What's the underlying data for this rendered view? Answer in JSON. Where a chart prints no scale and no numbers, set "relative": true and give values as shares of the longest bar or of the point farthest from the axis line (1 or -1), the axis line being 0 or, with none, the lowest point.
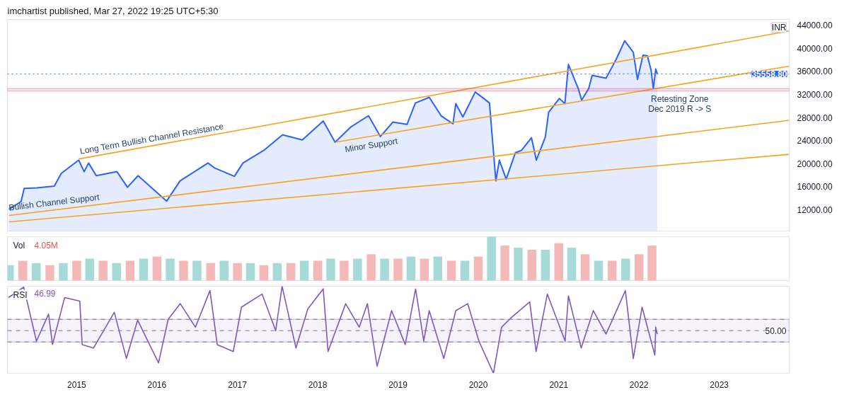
{
  "chart_data": [
    {
      "type": "area",
      "title": "imchartist published, Mar 27, 2022 19:25 UTC+5:30",
      "xlim": [
        "2014-02-20",
        "2023-11-15"
      ],
      "ylim": [
        8300,
        45000
      ],
      "yticks": [
        {
          "value": 12000,
          "label": "12000.00"
        },
        {
          "value": 16000,
          "label": "16000.00"
        },
        {
          "value": 20000,
          "label": "20000.00"
        },
        {
          "value": 24000,
          "label": "24000.00"
        },
        {
          "value": 28000,
          "label": "28000.00"
        },
        {
          "value": 32000,
          "label": "32000.00"
        },
        {
          "value": 36000,
          "label": "36000.00"
        },
        {
          "value": 40000,
          "label": "40000.00"
        },
        {
          "value": 44000,
          "label": "44000.00"
        }
      ],
      "tick_labels": "y",
      "series": [
        {
          "type": "area",
          "color": "#2962ff",
          "x": [
            "2014-02-27",
            "2014-04-23",
            "2014-05-07",
            "2014-07-03",
            "2014-09-21",
            "2014-10-23",
            "2015-01-10",
            "2015-02-04",
            "2015-02-24",
            "2015-03-31",
            "2015-07-03",
            "2015-08-20",
            "2015-10-07",
            "2016-02-14",
            "2016-04-15",
            "2016-08-20",
            "2016-09-21",
            "2016-12-18",
            "2017-01-26",
            "2017-05-01",
            "2017-07-25",
            "2017-10-23",
            "2018-01-26",
            "2018-03-21",
            "2018-06-02",
            "2018-08-20",
            "2018-10-13",
            "2018-12-09",
            "2019-02-11",
            "2019-03-21",
            "2019-05-23",
            "2019-07-16",
            "2019-09-08",
            "2019-09-21",
            "2019-10-23",
            "2019-12-18",
            "2020-01-26",
            "2020-02-21",
            "2020-03-21",
            "2020-04-06",
            "2020-05-07",
            "2020-06-18",
            "2020-07-16",
            "2020-08-30",
            "2020-09-21",
            "2020-11-01",
            "2020-11-16",
            "2021-01-04",
            "2021-01-29",
            "2021-02-14",
            "2021-03-31",
            "2021-04-15",
            "2021-05-17",
            "2021-06-02",
            "2021-08-04",
            "2021-09-18",
            "2021-10-28",
            "2021-12-06",
            "2021-12-25",
            "2022-01-19",
            "2022-02-08",
            "2022-02-25",
            "2022-03-07",
            "2022-03-18",
            "2022-03-25"
          ],
          "values": [
            12100,
            13400,
            15700,
            15800,
            16100,
            18300,
            20600,
            18600,
            20100,
            17900,
            18600,
            15900,
            17900,
            13500,
            17000,
            20100,
            19200,
            17800,
            20100,
            22300,
            25000,
            24100,
            27400,
            23700,
            26400,
            28300,
            24700,
            27200,
            26800,
            30500,
            31500,
            28300,
            26900,
            30400,
            28100,
            32400,
            31300,
            30500,
            17000,
            20600,
            17300,
            21900,
            22300,
            24500,
            20600,
            24600,
            28900,
            31300,
            30400,
            37200,
            33000,
            31000,
            33000,
            35300,
            34800,
            38000,
            41300,
            39300,
            34600,
            38800,
            38700,
            36200,
            33000,
            36400,
            35558.8
          ]
        },
        {
          "type": "line",
          "color": "#f7a21b",
          "x": [
            "2015-01-10",
            "2023-11-15"
          ],
          "values": [
            20800,
            43000
          ]
        },
        {
          "type": "line",
          "color": "#f7a21b",
          "x": [
            "2018-03-21",
            "2023-11-15"
          ],
          "values": [
            23700,
            36900
          ]
        },
        {
          "type": "line",
          "color": "#f7a21b",
          "x": [
            "2014-02-27",
            "2023-11-15"
          ],
          "values": [
            11000,
            27500
          ]
        },
        {
          "type": "line",
          "color": "#f7a21b",
          "x": [
            "2014-02-27",
            "2023-11-15"
          ],
          "values": [
            9900,
            21600
          ]
        }
      ],
      "ref_lines": [
        {
          "axis": "y",
          "value": 35558.8,
          "label": "35558.80",
          "color": "#2962ff",
          "line_style": "dotted"
        }
      ],
      "bands": [
        {
          "axis": "y",
          "from": 32600,
          "to": 33000,
          "color": "#e91e63"
        }
      ],
      "annotations": [
        "INR",
        {
          "text": "Long Term Bullish Channel Resistance",
          "x": "2015-01-20",
          "y": 21300
        },
        {
          "text": "Minor Support",
          "x": "2018-05-01",
          "y": 23300
        },
        {
          "text": "Bullish Channel Support",
          "x": "2014-03-01",
          "y": 11500
        },
        "Retesting Zone",
        "Dec 2019 R -> S"
      ]
    },
    {
      "type": "bar",
      "title": "Vol",
      "relative": true,
      "tick_labels": false,
      "xlim": [
        "2014-02-20",
        "2023-11-15"
      ],
      "x": [
        "2014-03",
        "2014-05",
        "2014-07",
        "2014-09",
        "2014-11",
        "2015-01",
        "2015-03",
        "2015-05",
        "2015-07",
        "2015-09",
        "2015-11",
        "2016-01",
        "2016-03",
        "2016-05",
        "2016-07",
        "2016-09",
        "2016-11",
        "2017-01",
        "2017-03",
        "2017-05",
        "2017-07",
        "2017-09",
        "2017-11",
        "2018-01",
        "2018-03",
        "2018-05",
        "2018-07",
        "2018-09",
        "2018-11",
        "2019-01",
        "2019-03",
        "2019-05",
        "2019-07",
        "2019-09",
        "2019-11",
        "2020-01",
        "2020-03",
        "2020-05",
        "2020-07",
        "2020-09",
        "2020-11",
        "2021-01",
        "2021-03",
        "2021-05",
        "2021-07",
        "2021-09",
        "2021-11",
        "2022-01",
        "2022-03"
      ],
      "series": [
        {
          "values": [
            0.35,
            0.45,
            0.4,
            0.35,
            0.4,
            0.45,
            0.5,
            0.45,
            0.4,
            0.45,
            0.5,
            0.55,
            0.5,
            0.45,
            0.45,
            0.4,
            0.45,
            0.4,
            0.4,
            0.35,
            0.4,
            0.4,
            0.45,
            0.45,
            0.5,
            0.45,
            0.5,
            0.6,
            0.5,
            0.5,
            0.55,
            0.5,
            0.55,
            0.45,
            0.45,
            0.55,
            1.0,
            0.8,
            0.75,
            0.7,
            0.7,
            0.85,
            0.75,
            0.6,
            0.45,
            0.45,
            0.5,
            0.6,
            0.8
          ],
          "colors": [
            "#80cbc4",
            "#ef9a9a",
            "#80cbc4",
            "#ef9a9a",
            "#80cbc4",
            "#ef9a9a",
            "#80cbc4",
            "#ef9a9a",
            "#80cbc4",
            "#ef9a9a",
            "#80cbc4",
            "#ef9a9a",
            "#80cbc4",
            "#ef9a9a",
            "#80cbc4",
            "#ef9a9a",
            "#80cbc4",
            "#ef9a9a",
            "#80cbc4",
            "#ef9a9a",
            "#80cbc4",
            "#ef9a9a",
            "#80cbc4",
            "#ef9a9a",
            "#80cbc4",
            "#ef9a9a",
            "#80cbc4",
            "#ef9a9a",
            "#80cbc4",
            "#ef9a9a",
            "#80cbc4",
            "#ef9a9a",
            "#80cbc4",
            "#ef9a9a",
            "#80cbc4",
            "#ef9a9a",
            "#80cbc4",
            "#ef9a9a",
            "#80cbc4",
            "#ef9a9a",
            "#80cbc4",
            "#ef9a9a",
            "#80cbc4",
            "#ef9a9a",
            "#80cbc4",
            "#ef9a9a",
            "#80cbc4",
            "#ef9a9a",
            "#ef9a9a"
          ]
        }
      ],
      "annotations": [
        "4.05M"
      ]
    },
    {
      "type": "line",
      "title": "RSI",
      "relative": true,
      "tick_labels": "x",
      "xlim": [
        "2014-02-20",
        "2023-11-15"
      ],
      "xticks": [
        "2015",
        "2016",
        "2017",
        "2018",
        "2019",
        "2020",
        "2021",
        "2022",
        "2023"
      ],
      "series": [
        {
          "color": "#7e57c2",
          "x": [
            "2014-02-25",
            "2014-05-05",
            "2014-07-02",
            "2014-08-26",
            "2014-09-13",
            "2014-11-07",
            "2015-01-15",
            "2015-01-26",
            "2015-03-18",
            "2015-06-21",
            "2015-08-15",
            "2015-10-05",
            "2016-01-08",
            "2016-02-21",
            "2016-04-16",
            "2016-06-24",
            "2016-08-29",
            "2016-10-01",
            "2016-12-13",
            "2017-01-19",
            "2017-04-23",
            "2017-06-24",
            "2017-07-23",
            "2017-09-24",
            "2017-11-17",
            "2018-01-26",
            "2018-02-17",
            "2018-05-08",
            "2018-07-09",
            "2018-08-15",
            "2018-09-28",
            "2018-12-03",
            "2019-02-03",
            "2019-03-22",
            "2019-04-28",
            "2019-05-23",
            "2019-07-28",
            "2019-09-21",
            "2019-11-14",
            "2020-01-04",
            "2020-03-10",
            "2020-04-16",
            "2020-05-30",
            "2020-08-22",
            "2020-09-20",
            "2020-11-10",
            "2021-01-30",
            "2021-02-14",
            "2021-04-13",
            "2021-06-07",
            "2021-08-04",
            "2021-10-31",
            "2021-12-06",
            "2022-01-15",
            "2022-03-14",
            "2022-03-18",
            "2022-03-25"
          ],
          "values": [
            0.87,
            0.99,
            0.37,
            0.68,
            0.33,
            0.87,
            0.83,
            0.33,
            0.29,
            0.7,
            0.17,
            0.61,
            0.12,
            0.62,
            0.8,
            0.53,
            0.95,
            0.33,
            0.25,
            0.76,
            0.91,
            0.49,
            1.0,
            0.29,
            0.74,
            0.97,
            0.25,
            0.8,
            0.53,
            0.8,
            0.08,
            0.72,
            0.33,
            0.97,
            0.37,
            0.72,
            0.17,
            0.72,
            0.8,
            0.37,
            0,
            0.53,
            0.64,
            0.82,
            0.25,
            0.91,
            0.37,
            0.89,
            0.29,
            0.72,
            0.45,
            0.95,
            0.17,
            0.76,
            0.21,
            0.53,
            0.45
          ]
        }
      ],
      "ref_lines": [
        {
          "axis": "y",
          "value": 0.62,
          "color": "#787b86",
          "line_style": "dashed"
        },
        {
          "axis": "y",
          "value": 0.49,
          "color": "#787b86",
          "line_style": "dashed"
        },
        {
          "axis": "y",
          "value": 0.36,
          "color": "#787b86",
          "line_style": "dashed"
        }
      ],
      "bands": [
        {
          "axis": "y",
          "from": 0.36,
          "to": 0.62,
          "color": "#7e57c2"
        }
      ],
      "annotations": [
        "46.99",
        "50.00"
      ]
    }
  ]
}
